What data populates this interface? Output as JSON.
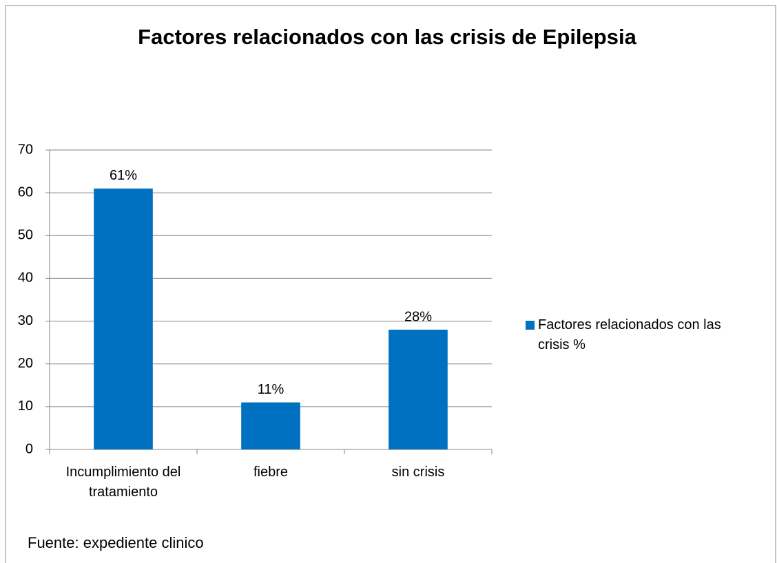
{
  "chart_data": {
    "type": "bar",
    "title": "Factores relacionados con  las crisis de Epilepsia",
    "categories": [
      "Incumplimiento del tratamiento",
      "fiebre",
      "sin crisis"
    ],
    "series": [
      {
        "name": "Factores relacionados con las crisis %",
        "color": "#0070c0",
        "values": [
          61,
          11,
          28
        ],
        "value_labels": [
          "61%",
          "11%",
          "28%"
        ]
      }
    ],
    "ylim": [
      0,
      70
    ],
    "yticks": [
      0,
      10,
      20,
      30,
      40,
      50,
      60,
      70
    ],
    "grid": true,
    "legend": "right",
    "note": "Fuente: expediente clinico"
  }
}
